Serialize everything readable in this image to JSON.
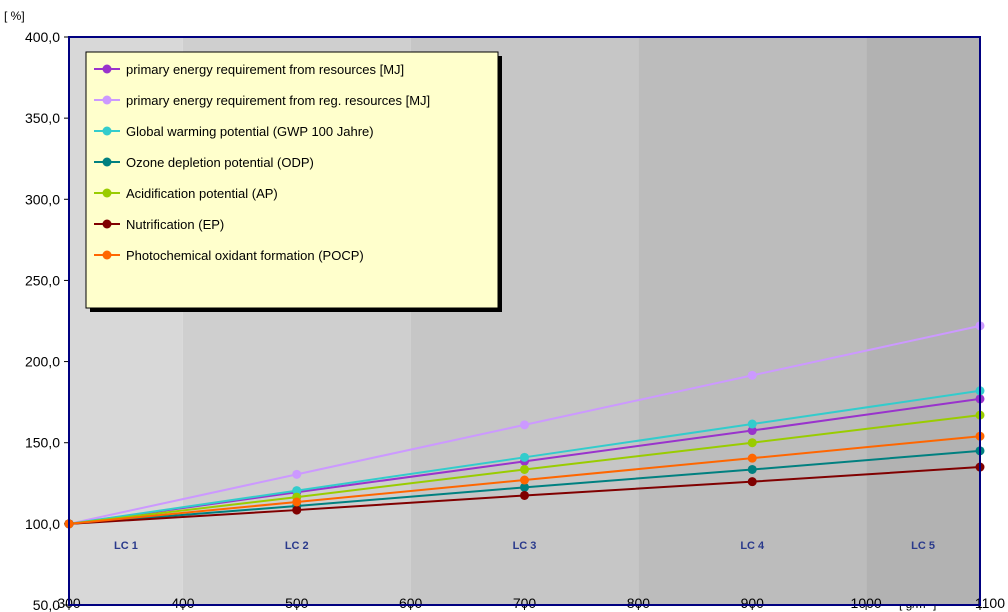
{
  "chart_data": {
    "type": "line",
    "ylabel": "[ %]",
    "xunit": "[ g/m² ]",
    "xlim": [
      300,
      1100
    ],
    "ylim": [
      50,
      400
    ],
    "x_ticks": [
      {
        "value": 300,
        "label": "300"
      },
      {
        "value": 400,
        "label": "400"
      },
      {
        "value": 500,
        "label": "500"
      },
      {
        "value": 600,
        "label": "600"
      },
      {
        "value": 700,
        "label": "700"
      },
      {
        "value": 800,
        "label": "800"
      },
      {
        "value": 900,
        "label": "900"
      },
      {
        "value": 1000,
        "label": "1000"
      },
      {
        "value": 1100,
        "label": "1100"
      }
    ],
    "y_ticks": [
      {
        "value": 50,
        "label": "50,0"
      },
      {
        "value": 100,
        "label": "100,0"
      },
      {
        "value": 150,
        "label": "150,0"
      },
      {
        "value": 200,
        "label": "200,0"
      },
      {
        "value": 250,
        "label": "250,0"
      },
      {
        "value": 300,
        "label": "300,0"
      },
      {
        "value": 350,
        "label": "350,0"
      },
      {
        "value": 400,
        "label": "400,0"
      }
    ],
    "regions": [
      {
        "label": "LC 1",
        "from": 300,
        "to": 400,
        "color": "#d8d8d8"
      },
      {
        "label": "LC 2",
        "from": 400,
        "to": 600,
        "color": "#cfcfcf"
      },
      {
        "label": "LC 3",
        "from": 600,
        "to": 800,
        "color": "#c6c6c6"
      },
      {
        "label": "LC 4",
        "from": 800,
        "to": 1000,
        "color": "#bcbcbc"
      },
      {
        "label": "LC 5",
        "from": 1000,
        "to": 1100,
        "color": "#b2b2b2"
      }
    ],
    "x": [
      300,
      500,
      700,
      900,
      1100
    ],
    "series": [
      {
        "name": "primary energy requirement from resources  [MJ]",
        "color": "#9933cc",
        "values": [
          100,
          119.5,
          138.5,
          157.5,
          177
        ]
      },
      {
        "name": "primary energy requirement from reg. resources  [MJ]",
        "color": "#cc99ff",
        "values": [
          100,
          130.5,
          161,
          191.5,
          222
        ]
      },
      {
        "name": "Global warming potential (GWP 100 Jahre)",
        "color": "#33cccc",
        "values": [
          100,
          120.5,
          141,
          161.5,
          182
        ]
      },
      {
        "name": "Ozone depletion potential (ODP)",
        "color": "#008080",
        "values": [
          100,
          111,
          122.5,
          133.5,
          145
        ]
      },
      {
        "name": "Acidification potential (AP)",
        "color": "#99cc00",
        "values": [
          100,
          116.5,
          133.5,
          150,
          167
        ]
      },
      {
        "name": "Nutrification (EP)",
        "color": "#800000",
        "values": [
          100,
          108.5,
          117.5,
          126,
          135
        ]
      },
      {
        "name": "Photochemical oxidant formation (POCP)",
        "color": "#ff6600",
        "values": [
          100,
          113.5,
          127,
          140.5,
          154
        ]
      }
    ],
    "legend": {
      "position": "top-left",
      "background": "#ffffcc"
    },
    "background": "#c0c0c0",
    "border_color": "#000080",
    "grid": false
  }
}
